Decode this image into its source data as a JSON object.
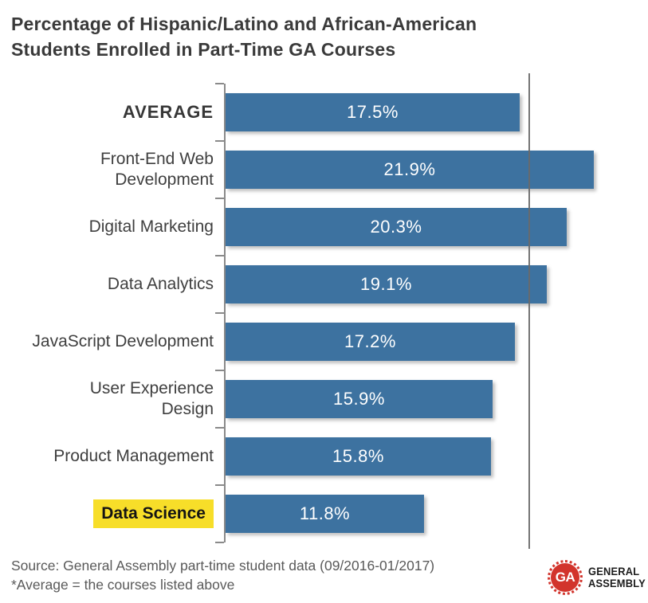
{
  "title": {
    "lines": [
      "Percentage of Hispanic/Latino and African-American",
      "Students Enrolled in Part-Time GA Courses"
    ]
  },
  "chart_data": {
    "type": "bar",
    "orientation": "horizontal",
    "title": "Percentage of Hispanic/Latino and African-American Students Enrolled in Part-Time GA Courses",
    "xlabel": "",
    "ylabel": "",
    "xlim": [
      0,
      24.6
    ],
    "grid": false,
    "legend": false,
    "categories": [
      "AVERAGE",
      "Front-End Web\nDevelopment",
      "Digital Marketing",
      "Data Analytics",
      "JavaScript Development",
      "User Experience\nDesign",
      "Product Management",
      "Data Science"
    ],
    "values": [
      17.5,
      21.9,
      20.3,
      19.1,
      17.2,
      15.9,
      15.8,
      11.8
    ],
    "value_labels": [
      "17.5%",
      "21.9%",
      "20.3%",
      "19.1%",
      "17.2%",
      "15.9%",
      "15.8%",
      "11.8%"
    ],
    "bar_color": "#3d72a0",
    "value_label_color": "#ffffff",
    "bold_categories": [
      "AVERAGE"
    ],
    "highlight_category": "Data Science",
    "highlight_color": "#f7de29",
    "reference_line": {
      "value": 17.5,
      "meaning": "average of courses listed"
    }
  },
  "footer": {
    "source_line": "Source: General Assembly part-time student data (09/2016-01/2017)",
    "note_line": "*Average = the courses listed above"
  },
  "logo": {
    "seal_text": "GA",
    "name_lines": [
      "GENERAL",
      "ASSEMBLY"
    ],
    "brand_red": "#d2342c"
  }
}
